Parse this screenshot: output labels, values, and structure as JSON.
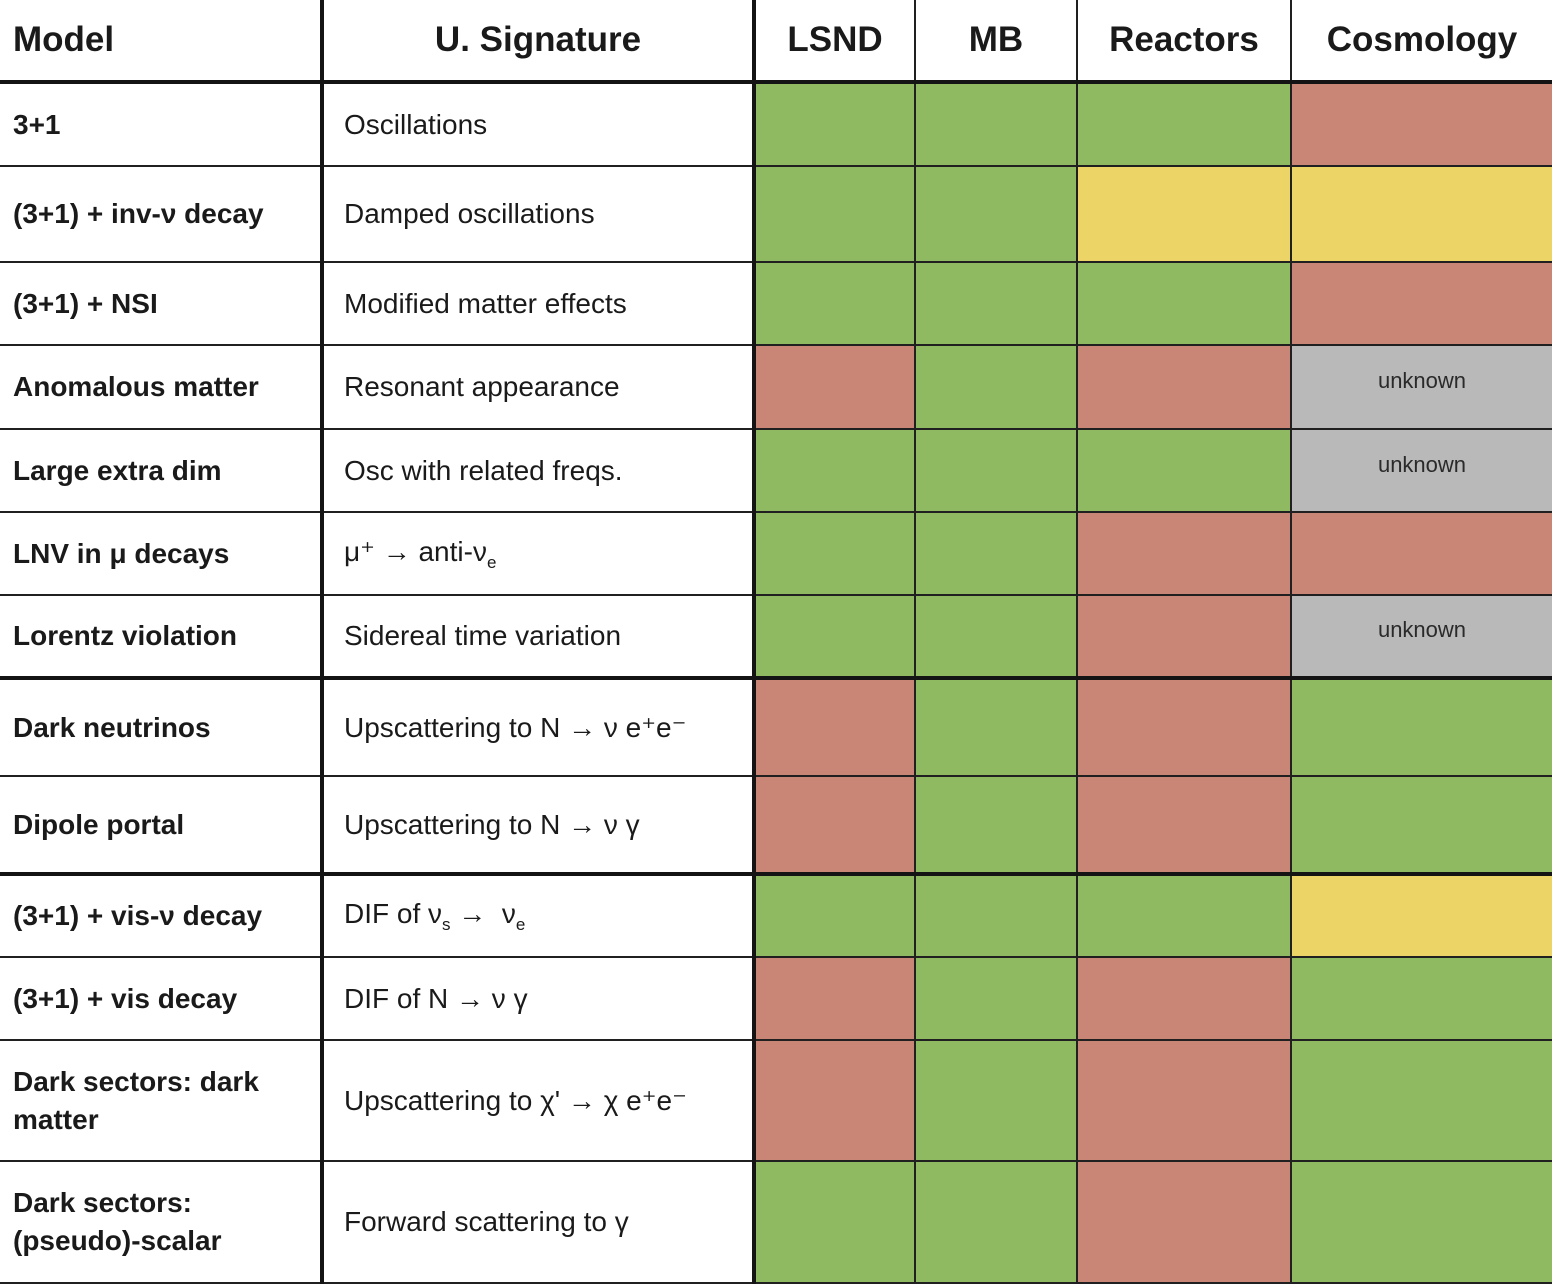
{
  "headers": {
    "model": "Model",
    "signature": "U. Signature",
    "lsnd": "LSND",
    "mb": "MB",
    "reactors": "Reactors",
    "cosmology": "Cosmology"
  },
  "status_colors": {
    "green": "#8fba62",
    "red": "#c98575",
    "yellow": "#edd466",
    "grey": "#b9b9b9"
  },
  "rows": [
    {
      "model": "3+1",
      "signature": "Oscillations",
      "lsnd": "green",
      "mb": "green",
      "reactors": "green",
      "cosmology": "red",
      "cosmology_text": ""
    },
    {
      "model": "(3+1) + inv-ν decay",
      "signature": "Damped oscillations",
      "lsnd": "green",
      "mb": "green",
      "reactors": "yellow",
      "cosmology": "yellow",
      "cosmology_text": ""
    },
    {
      "model": "(3+1) + NSI",
      "signature": "Modified matter effects",
      "lsnd": "green",
      "mb": "green",
      "reactors": "green",
      "cosmology": "red",
      "cosmology_text": ""
    },
    {
      "model": "Anomalous matter",
      "signature": "Resonant appearance",
      "lsnd": "red",
      "mb": "green",
      "reactors": "red",
      "cosmology": "grey",
      "cosmology_text": "unknown"
    },
    {
      "model": "Large extra dim",
      "signature": "Osc with related freqs.",
      "lsnd": "green",
      "mb": "green",
      "reactors": "green",
      "cosmology": "grey",
      "cosmology_text": "unknown"
    },
    {
      "model": "LNV in μ decays",
      "signature": "μ⁺ → anti-ν",
      "signature_sub": "e",
      "lsnd": "green",
      "mb": "green",
      "reactors": "red",
      "cosmology": "red",
      "cosmology_text": ""
    },
    {
      "model": "Lorentz violation",
      "signature": "Sidereal time variation",
      "lsnd": "green",
      "mb": "green",
      "reactors": "red",
      "cosmology": "grey",
      "cosmology_text": "unknown"
    },
    {
      "model": "Dark neutrinos",
      "signature": "Upscattering to N → ν e⁺e⁻",
      "lsnd": "red",
      "mb": "green",
      "reactors": "red",
      "cosmology": "green",
      "cosmology_text": ""
    },
    {
      "model": "Dipole portal",
      "signature": "Upscattering to N → ν γ",
      "lsnd": "red",
      "mb": "green",
      "reactors": "red",
      "cosmology": "green",
      "cosmology_text": ""
    },
    {
      "model": "(3+1) + vis-ν decay",
      "signature": "DIF of ν",
      "signature_sub": "s",
      "signature_tail": " →  ν",
      "signature_tail_sub": "e",
      "lsnd": "green",
      "mb": "green",
      "reactors": "green",
      "cosmology": "yellow",
      "cosmology_text": ""
    },
    {
      "model": "(3+1) + vis decay",
      "signature": "DIF of N → ν γ",
      "lsnd": "red",
      "mb": "green",
      "reactors": "red",
      "cosmology": "green",
      "cosmology_text": ""
    },
    {
      "model": "Dark sectors: dark matter",
      "signature": "Upscattering to χ' → χ e⁺e⁻",
      "lsnd": "red",
      "mb": "green",
      "reactors": "red",
      "cosmology": "green",
      "cosmology_text": ""
    },
    {
      "model": "Dark sectors: (pseudo)-scalar",
      "signature": "Forward scattering to γ",
      "lsnd": "green",
      "mb": "green",
      "reactors": "red",
      "cosmology": "green",
      "cosmology_text": ""
    }
  ]
}
